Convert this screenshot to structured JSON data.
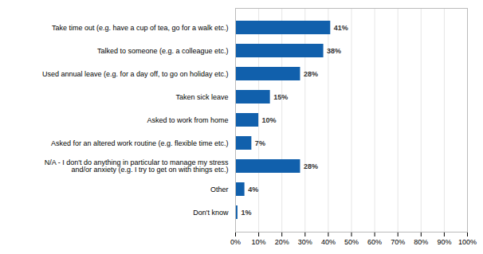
{
  "chart_data": {
    "type": "bar",
    "orientation": "horizontal",
    "categories": [
      "Take time out (e.g. have a cup of tea, go for a walk etc.)",
      "Talked to someone (e.g. a colleague etc.)",
      "Used annual leave (e.g. for a day off, to go on holiday etc.)",
      "Taken sick leave",
      "Asked to work from home",
      "Asked for an altered work routine (e.g. flexible time etc.)",
      "N/A - I don't do anything in particular to manage my stress\nand/or anxiety (e.g. I try to get on with things etc.)",
      "Other",
      "Don't know"
    ],
    "values": [
      41,
      38,
      28,
      15,
      10,
      7,
      28,
      4,
      1
    ],
    "value_labels": [
      "41%",
      "38%",
      "28%",
      "15%",
      "10%",
      "7%",
      "28%",
      "4%",
      "1%"
    ],
    "data_labels": true,
    "color": "#1160ac",
    "xlim": [
      0,
      100
    ],
    "xticks": [
      {
        "value": 0,
        "label": "0%"
      },
      {
        "value": 10,
        "label": "10%"
      },
      {
        "value": 20,
        "label": "20%"
      },
      {
        "value": 30,
        "label": "30%"
      },
      {
        "value": 40,
        "label": "40%"
      },
      {
        "value": 50,
        "label": "50%"
      },
      {
        "value": 60,
        "label": "60%"
      },
      {
        "value": 70,
        "label": "70%"
      },
      {
        "value": 80,
        "label": "80%"
      },
      {
        "value": 90,
        "label": "90%"
      },
      {
        "value": 100,
        "label": "100%"
      }
    ],
    "grid": true
  }
}
